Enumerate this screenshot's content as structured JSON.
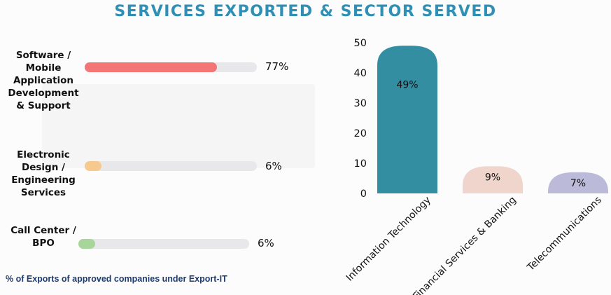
{
  "title": "SERVICES EXPORTED & SECTOR SERVED",
  "footnote": "% of Exports of approved companies under Export-IT",
  "services": [
    {
      "lines": [
        "Software /",
        "Mobile",
        "Application",
        "Development",
        "& Support"
      ],
      "value": 77,
      "pct_label": "77%",
      "color": "#f47575"
    },
    {
      "lines": [
        "Electronic",
        "Design /",
        "Engineering",
        "Services"
      ],
      "value": 6,
      "pct_label": "6%",
      "color": "#f6c98e"
    },
    {
      "lines": [
        "Call Center /",
        "BPO"
      ],
      "value": 6,
      "pct_label": "6%",
      "color": "#a8d69a"
    }
  ],
  "chart_data": {
    "type": "bar",
    "categories": [
      "Information Technology",
      "Financial Services & Banking",
      "Telecommunications"
    ],
    "values": [
      49,
      9,
      7
    ],
    "data_labels": [
      "49%",
      "9%",
      "7%"
    ],
    "colors": [
      "#348ea2",
      "#efd5cb",
      "#bbbbd9"
    ],
    "ylim": [
      0,
      50
    ],
    "yticks": [
      "0",
      "10",
      "20",
      "30",
      "40",
      "50"
    ],
    "title": "",
    "xlabel": "",
    "ylabel": "",
    "grid": false
  }
}
